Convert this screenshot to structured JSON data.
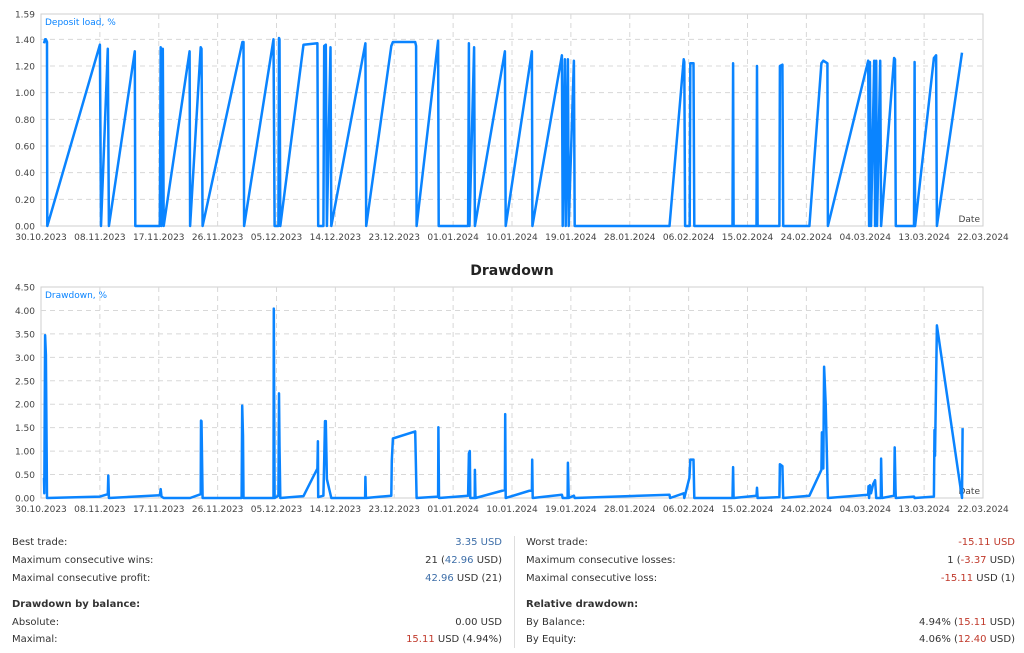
{
  "colors": {
    "series": "#0a84ff",
    "grid": "#d8d8d8",
    "border": "#cfcfcf",
    "negative": "#c0392b",
    "positive": "#3d6ea8"
  },
  "chart_data": [
    {
      "type": "line",
      "title": "",
      "series_label": "Deposit load, %",
      "xlabel": "Date",
      "ylim": [
        0,
        1.59
      ],
      "yticks": [
        "0.00",
        "0.20",
        "0.40",
        "0.60",
        "0.80",
        "1.00",
        "1.20",
        "1.40",
        "1.59"
      ],
      "xticks": [
        "30.10.2023",
        "08.11.2023",
        "17.11.2023",
        "26.11.2023",
        "05.12.2023",
        "14.12.2023",
        "23.12.2023",
        "01.01.2024",
        "10.01.2024",
        "19.01.2024",
        "28.01.2024",
        "06.02.2024",
        "15.02.2024",
        "24.02.2024",
        "04.03.2024",
        "13.03.2024",
        "22.03.2024"
      ],
      "xlim": [
        "30.10.2023 00:00",
        "22.03.2024 00:00"
      ],
      "grid": true,
      "points": [
        [
          "30.10.2023 11:00",
          1.37
        ],
        [
          "30.10.2023 15:00",
          1.4
        ],
        [
          "30.10.2023 18:00",
          1.4
        ],
        [
          "30.10.2023 22:00",
          1.38
        ],
        [
          "30.10.2023 23:00",
          0
        ],
        [
          "08.11.2023 00:00",
          1.36
        ],
        [
          "08.11.2023 04:00",
          0
        ],
        [
          "09.11.2023 05:00",
          1.33
        ],
        [
          "09.11.2023 09:00",
          0
        ],
        [
          "13.11.2023 08:00",
          1.31
        ],
        [
          "13.11.2023 10:00",
          0
        ],
        [
          "17.11.2023 04:00",
          0
        ],
        [
          "17.11.2023 07:00",
          1.34
        ],
        [
          "17.11.2023 10:00",
          0
        ],
        [
          "17.11.2023 15:00",
          1.33
        ],
        [
          "17.11.2023 18:00",
          0
        ],
        [
          "21.11.2023 17:00",
          1.31
        ],
        [
          "21.11.2023 19:00",
          0
        ],
        [
          "23.11.2023 10:00",
          1.34
        ],
        [
          "23.11.2023 13:00",
          1.33
        ],
        [
          "23.11.2023 17:00",
          0
        ],
        [
          "29.11.2023 19:00",
          1.38
        ],
        [
          "29.11.2023 23:00",
          1.38
        ],
        [
          "30.11.2023 01:00",
          0
        ],
        [
          "04.12.2023 13:00",
          1.4
        ],
        [
          "04.12.2023 17:00",
          0
        ],
        [
          "05.12.2023 07:00",
          0
        ],
        [
          "05.12.2023 09:00",
          1.41
        ],
        [
          "05.12.2023 11:00",
          1.4
        ],
        [
          "05.12.2023 14:00",
          0
        ],
        [
          "09.12.2023 03:00",
          1.36
        ],
        [
          "11.12.2023 06:00",
          1.37
        ],
        [
          "11.12.2023 09:00",
          0
        ],
        [
          "12.12.2023 04:00",
          0
        ],
        [
          "12.12.2023 07:00",
          1.35
        ],
        [
          "12.12.2023 13:00",
          1.36
        ],
        [
          "12.12.2023 17:00",
          0
        ],
        [
          "13.12.2023 06:00",
          1.34
        ],
        [
          "13.12.2023 09:00",
          0
        ],
        [
          "18.12.2023 14:00",
          1.37
        ],
        [
          "18.12.2023 17:00",
          0
        ],
        [
          "22.12.2023 13:00",
          1.35
        ],
        [
          "22.12.2023 19:00",
          1.38
        ],
        [
          "26.12.2023 05:00",
          1.38
        ],
        [
          "26.12.2023 08:00",
          1.35
        ],
        [
          "26.12.2023 10:00",
          0
        ],
        [
          "29.12.2023 17:00",
          1.39
        ],
        [
          "29.12.2023 19:00",
          0
        ],
        [
          "03.01.2024 07:00",
          0
        ],
        [
          "03.01.2024 10:00",
          1.37
        ],
        [
          "03.01.2024 12:00",
          0
        ],
        [
          "04.01.2024 05:00",
          1.34
        ],
        [
          "04.01.2024 08:00",
          0
        ],
        [
          "08.01.2024 22:00",
          1.31
        ],
        [
          "09.01.2024 01:00",
          0
        ],
        [
          "13.01.2024 01:00",
          1.31
        ],
        [
          "13.01.2024 03:00",
          0
        ],
        [
          "17.01.2024 15:00",
          1.28
        ],
        [
          "17.01.2024 18:00",
          0
        ],
        [
          "18.01.2024 02:00",
          1.25
        ],
        [
          "18.01.2024 05:00",
          0
        ],
        [
          "18.01.2024 13:00",
          1.25
        ],
        [
          "18.01.2024 16:00",
          0
        ],
        [
          "19.01.2024 11:00",
          1.24
        ],
        [
          "19.01.2024 14:00",
          0
        ],
        [
          "03.02.2024 02:00",
          0
        ],
        [
          "05.02.2024 06:00",
          1.25
        ],
        [
          "05.02.2024 08:00",
          1.23
        ],
        [
          "05.02.2024 11:00",
          0
        ],
        [
          "06.02.2024 04:00",
          0
        ],
        [
          "06.02.2024 06:00",
          1.22
        ],
        [
          "06.02.2024 18:00",
          1.22
        ],
        [
          "06.02.2024 21:00",
          0
        ],
        [
          "12.02.2024 17:00",
          0
        ],
        [
          "12.02.2024 19:00",
          1.22
        ],
        [
          "12.02.2024 21:00",
          0
        ],
        [
          "16.02.2024 09:00",
          0
        ],
        [
          "16.02.2024 11:00",
          1.2
        ],
        [
          "16.02.2024 13:00",
          0
        ],
        [
          "19.02.2024 21:00",
          0
        ],
        [
          "19.02.2024 23:00",
          1.2
        ],
        [
          "20.02.2024 08:00",
          1.21
        ],
        [
          "20.02.2024 11:00",
          0
        ],
        [
          "24.02.2024 11:00",
          0
        ],
        [
          "26.02.2024 07:00",
          1.22
        ],
        [
          "26.02.2024 14:00",
          1.24
        ],
        [
          "27.02.2024 05:00",
          1.22
        ],
        [
          "27.02.2024 07:00",
          0
        ],
        [
          "04.03.2024 11:00",
          1.24
        ],
        [
          "04.03.2024 14:00",
          0
        ],
        [
          "04.03.2024 17:00",
          1.23
        ],
        [
          "04.03.2024 21:00",
          0
        ],
        [
          "05.03.2024 09:00",
          1.24
        ],
        [
          "05.03.2024 12:00",
          0
        ],
        [
          "05.03.2024 16:00",
          1.24
        ],
        [
          "05.03.2024 19:00",
          0
        ],
        [
          "06.03.2024 07:00",
          1.24
        ],
        [
          "06.03.2024 10:00",
          0
        ],
        [
          "08.03.2024 10:00",
          1.26
        ],
        [
          "08.03.2024 13:00",
          1.25
        ],
        [
          "08.03.2024 16:00",
          0
        ],
        [
          "11.03.2024 11:00",
          0
        ],
        [
          "11.03.2024 13:00",
          1.23
        ],
        [
          "11.03.2024 15:00",
          0
        ],
        [
          "14.03.2024 12:00",
          1.26
        ],
        [
          "14.03.2024 20:00",
          1.28
        ],
        [
          "14.03.2024 23:00",
          0
        ],
        [
          "18.03.2024 19:00",
          1.3
        ]
      ]
    },
    {
      "type": "line",
      "title": "Drawdown",
      "series_label": "Drawdown, %",
      "xlabel": "Date",
      "ylim": [
        0,
        4.5
      ],
      "yticks": [
        "0.00",
        "0.50",
        "1.00",
        "1.50",
        "2.00",
        "2.50",
        "3.00",
        "3.50",
        "4.00",
        "4.50"
      ],
      "xticks": [
        "30.10.2023",
        "08.11.2023",
        "17.11.2023",
        "26.11.2023",
        "05.12.2023",
        "14.12.2023",
        "23.12.2023",
        "01.01.2024",
        "10.01.2024",
        "19.01.2024",
        "28.01.2024",
        "06.02.2024",
        "15.02.2024",
        "24.02.2024",
        "04.03.2024",
        "13.03.2024",
        "22.03.2024"
      ],
      "xlim": [
        "30.10.2023 00:00",
        "22.03.2024 00:00"
      ],
      "grid": true,
      "points": [
        [
          "30.10.2023 11:00",
          0.43
        ],
        [
          "30.10.2023 12:00",
          0.1
        ],
        [
          "30.10.2023 15:00",
          3.47
        ],
        [
          "30.10.2023 18:00",
          3.05
        ],
        [
          "30.10.2023 22:00",
          0
        ],
        [
          "08.11.2023 00:00",
          0.03
        ],
        [
          "09.11.2023 05:00",
          0.08
        ],
        [
          "09.11.2023 07:00",
          0.48
        ],
        [
          "09.11.2023 09:00",
          0
        ],
        [
          "17.11.2023 04:00",
          0.06
        ],
        [
          "17.11.2023 07:00",
          0.19
        ],
        [
          "17.11.2023 10:00",
          0.03
        ],
        [
          "17.11.2023 18:00",
          0
        ],
        [
          "21.11.2023 19:00",
          0
        ],
        [
          "23.11.2023 10:00",
          0.08
        ],
        [
          "23.11.2023 11:00",
          1.65
        ],
        [
          "23.11.2023 13:00",
          1.64
        ],
        [
          "23.11.2023 17:00",
          0
        ],
        [
          "29.11.2023 16:00",
          0
        ],
        [
          "29.11.2023 18:00",
          1.97
        ],
        [
          "29.11.2023 21:00",
          1.33
        ],
        [
          "29.11.2023 23:00",
          0
        ],
        [
          "04.12.2023 13:00",
          0
        ],
        [
          "04.12.2023 14:00",
          4.04
        ],
        [
          "04.12.2023 17:00",
          0
        ],
        [
          "05.12.2023 07:00",
          0.05
        ],
        [
          "05.12.2023 09:00",
          2.23
        ],
        [
          "05.12.2023 11:00",
          1.12
        ],
        [
          "05.12.2023 14:00",
          0
        ],
        [
          "09.12.2023 03:00",
          0.04
        ],
        [
          "11.12.2023 06:00",
          0.63
        ],
        [
          "11.12.2023 08:00",
          1.21
        ],
        [
          "11.12.2023 09:00",
          0.02
        ],
        [
          "12.12.2023 04:00",
          0.05
        ],
        [
          "12.12.2023 07:00",
          0.8
        ],
        [
          "12.12.2023 10:00",
          1.64
        ],
        [
          "12.12.2023 13:00",
          1.64
        ],
        [
          "12.12.2023 17:00",
          0.4
        ],
        [
          "13.12.2023 09:00",
          0
        ],
        [
          "18.12.2023 13:00",
          0
        ],
        [
          "18.12.2023 14:00",
          0.45
        ],
        [
          "18.12.2023 16:00",
          0
        ],
        [
          "22.12.2023 13:00",
          0.05
        ],
        [
          "22.12.2023 15:00",
          0.8
        ],
        [
          "22.12.2023 19:00",
          1.27
        ],
        [
          "26.12.2023 05:00",
          1.42
        ],
        [
          "26.12.2023 10:00",
          0
        ],
        [
          "29.12.2023 17:00",
          0.03
        ],
        [
          "29.12.2023 18:00",
          1.51
        ],
        [
          "29.12.2023 20:00",
          0
        ],
        [
          "03.01.2024 07:00",
          0.05
        ],
        [
          "03.01.2024 10:00",
          0.95
        ],
        [
          "03.01.2024 13:00",
          1.0
        ],
        [
          "03.01.2024 15:00",
          0
        ],
        [
          "04.01.2024 07:00",
          0
        ],
        [
          "04.01.2024 08:00",
          0.6
        ],
        [
          "04.01.2024 10:00",
          0
        ],
        [
          "08.01.2024 22:00",
          0.17
        ],
        [
          "08.01.2024 23:00",
          1.79
        ],
        [
          "09.01.2024 01:00",
          0
        ],
        [
          "13.01.2024 01:00",
          0.17
        ],
        [
          "13.01.2024 02:00",
          0.82
        ],
        [
          "13.01.2024 04:00",
          0
        ],
        [
          "17.01.2024 15:00",
          0.07
        ],
        [
          "17.01.2024 18:00",
          0
        ],
        [
          "18.01.2024 12:00",
          0
        ],
        [
          "18.01.2024 13:00",
          0.75
        ],
        [
          "18.01.2024 16:00",
          0
        ],
        [
          "19.01.2024 11:00",
          0.05
        ],
        [
          "19.01.2024 14:00",
          0
        ],
        [
          "03.02.2024 02:00",
          0.07
        ],
        [
          "03.02.2024 04:00",
          0
        ],
        [
          "05.02.2024 06:00",
          0.1
        ],
        [
          "05.02.2024 08:00",
          0
        ],
        [
          "06.02.2024 03:00",
          0.43
        ],
        [
          "06.02.2024 06:00",
          0.82
        ],
        [
          "06.02.2024 18:00",
          0.82
        ],
        [
          "06.02.2024 21:00",
          0
        ],
        [
          "12.02.2024 17:00",
          0
        ],
        [
          "12.02.2024 19:00",
          0.66
        ],
        [
          "12.02.2024 21:00",
          0
        ],
        [
          "16.02.2024 09:00",
          0.05
        ],
        [
          "16.02.2024 11:00",
          0.22
        ],
        [
          "16.02.2024 13:00",
          0
        ],
        [
          "19.02.2024 21:00",
          0.02
        ],
        [
          "19.02.2024 23:00",
          0.72
        ],
        [
          "20.02.2024 08:00",
          0.68
        ],
        [
          "20.02.2024 11:00",
          0
        ],
        [
          "24.02.2024 11:00",
          0.05
        ],
        [
          "26.02.2024 07:00",
          0.6
        ],
        [
          "26.02.2024 09:00",
          1.4
        ],
        [
          "26.02.2024 14:00",
          0.63
        ],
        [
          "26.02.2024 17:00",
          2.8
        ],
        [
          "26.02.2024 23:00",
          2.0
        ],
        [
          "27.02.2024 07:00",
          0
        ],
        [
          "04.03.2024 11:00",
          0.07
        ],
        [
          "04.03.2024 12:00",
          0.25
        ],
        [
          "04.03.2024 14:00",
          0
        ],
        [
          "04.03.2024 17:00",
          0.27
        ],
        [
          "04.03.2024 21:00",
          0.1
        ],
        [
          "05.03.2024 05:00",
          0.3
        ],
        [
          "05.03.2024 12:00",
          0.38
        ],
        [
          "05.03.2024 16:00",
          0
        ],
        [
          "06.03.2024 09:00",
          0
        ],
        [
          "06.03.2024 10:00",
          0.84
        ],
        [
          "06.03.2024 13:00",
          0
        ],
        [
          "08.03.2024 10:00",
          0.05
        ],
        [
          "08.03.2024 12:00",
          1.08
        ],
        [
          "08.03.2024 15:00",
          0.2
        ],
        [
          "08.03.2024 16:00",
          0
        ],
        [
          "11.03.2024 11:00",
          0.03
        ],
        [
          "11.03.2024 13:00",
          0
        ],
        [
          "14.03.2024 12:00",
          0.03
        ],
        [
          "14.03.2024 14:00",
          1.45
        ],
        [
          "14.03.2024 16:00",
          0.9
        ],
        [
          "14.03.2024 23:00",
          3.68
        ],
        [
          "18.03.2024 19:00",
          0
        ],
        [
          "18.03.2024 21:00",
          1.49
        ]
      ]
    }
  ],
  "stats": {
    "left": [
      {
        "label": "Best trade:",
        "value": "3.35 USD",
        "color": "blue"
      },
      {
        "label": "Maximum consecutive wins:",
        "value_main": "21 (",
        "value_hl": "42.96",
        "value_tail": " USD)",
        "hl_color": "blue"
      },
      {
        "label": "Maximal consecutive profit:",
        "value_main": "",
        "value_hl": "42.96",
        "value_tail": " USD (21)",
        "hl_color": "blue"
      }
    ],
    "right": [
      {
        "label": "Worst trade:",
        "value": "-15.11 USD",
        "color": "red"
      },
      {
        "label": "Maximum consecutive losses:",
        "value_main": "1 (",
        "value_hl": "-3.37",
        "value_tail": " USD)",
        "hl_color": "red"
      },
      {
        "label": "Maximal consecutive loss:",
        "value_main": "",
        "value_hl": "-15.11",
        "value_tail": " USD (1)",
        "hl_color": "red"
      }
    ],
    "drawdown_balance": {
      "heading": "Drawdown by balance:",
      "absolute_label": "Absolute:",
      "absolute_value": "0.00 USD",
      "maximal_label": "Maximal:",
      "maximal_hl": "15.11",
      "maximal_tail": " USD (4.94%)"
    },
    "relative": {
      "heading": "Relative drawdown:",
      "balance_label": "By Balance:",
      "balance_main": "4.94% (",
      "balance_hl": "15.11",
      "balance_tail": " USD)",
      "equity_label": "By Equity:",
      "equity_main": "4.06% (",
      "equity_hl": "12.40",
      "equity_tail": " USD)"
    }
  }
}
